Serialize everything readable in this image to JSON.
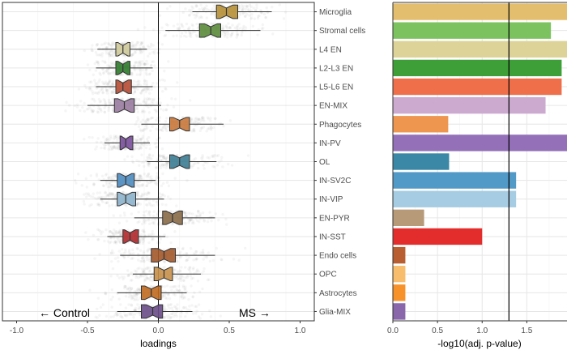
{
  "chart_data": [
    {
      "type": "boxplot",
      "title": "",
      "xlabel": "loadings",
      "ylabel": "",
      "xlim": [
        -1.1,
        1.1
      ],
      "xticks": [
        "-1.0",
        "-0.5",
        "0.0",
        "0.5",
        "1.0"
      ],
      "xtick_values": [
        -1.0,
        -0.5,
        0.0,
        0.5,
        1.0
      ],
      "reference_line_x": 0,
      "annotations": {
        "left": "← Control",
        "right": "MS →"
      },
      "categories": [
        "Microglia",
        "Stromal cells",
        "L4 EN",
        "L2-L3 EN",
        "L5-L6 EN",
        "EN-MIX",
        "Phagocytes",
        "IN-PV",
        "OL",
        "IN-SV2C",
        "IN-VIP",
        "EN-PYR",
        "IN-SST",
        "Endo cells",
        "OPC",
        "Astrocytes",
        "Glia-MIX"
      ],
      "boxes": [
        {
          "name": "Microglia",
          "whisker_low": 0.24,
          "q1": 0.41,
          "median": 0.48,
          "q3": 0.56,
          "whisker_high": 0.8
        },
        {
          "name": "Stromal cells",
          "whisker_low": 0.05,
          "q1": 0.29,
          "median": 0.37,
          "q3": 0.44,
          "whisker_high": 0.72
        },
        {
          "name": "L4 EN",
          "whisker_low": -0.43,
          "q1": -0.3,
          "median": -0.25,
          "q3": -0.2,
          "whisker_high": -0.08
        },
        {
          "name": "L2-L3 EN",
          "whisker_low": -0.44,
          "q1": -0.3,
          "median": -0.25,
          "q3": -0.2,
          "whisker_high": -0.04
        },
        {
          "name": "L5-L6 EN",
          "whisker_low": -0.44,
          "q1": -0.3,
          "median": -0.25,
          "q3": -0.19,
          "whisker_high": -0.04
        },
        {
          "name": "EN-MIX",
          "whisker_low": -0.5,
          "q1": -0.31,
          "median": -0.24,
          "q3": -0.17,
          "whisker_high": 0.02
        },
        {
          "name": "Phagocytes",
          "whisker_low": -0.12,
          "q1": 0.08,
          "median": 0.15,
          "q3": 0.22,
          "whisker_high": 0.46
        },
        {
          "name": "IN-PV",
          "whisker_low": -0.38,
          "q1": -0.27,
          "median": -0.23,
          "q3": -0.18,
          "whisker_high": -0.06
        },
        {
          "name": "OL",
          "whisker_low": -0.08,
          "q1": 0.08,
          "median": 0.15,
          "q3": 0.22,
          "whisker_high": 0.41
        },
        {
          "name": "IN-SV2C",
          "whisker_low": -0.41,
          "q1": -0.29,
          "median": -0.23,
          "q3": -0.17,
          "whisker_high": -0.02
        },
        {
          "name": "IN-VIP",
          "whisker_low": -0.41,
          "q1": -0.29,
          "median": -0.23,
          "q3": -0.16,
          "whisker_high": 0.04
        },
        {
          "name": "EN-PYR",
          "whisker_low": -0.17,
          "q1": 0.03,
          "median": 0.1,
          "q3": 0.17,
          "whisker_high": 0.4
        },
        {
          "name": "IN-SST",
          "whisker_low": -0.36,
          "q1": -0.25,
          "median": -0.2,
          "q3": -0.14,
          "whisker_high": 0.05
        },
        {
          "name": "Endo cells",
          "whisker_low": -0.27,
          "q1": -0.05,
          "median": 0.04,
          "q3": 0.12,
          "whisker_high": 0.4
        },
        {
          "name": "OPC",
          "whisker_low": -0.18,
          "q1": -0.03,
          "median": 0.04,
          "q3": 0.1,
          "whisker_high": 0.3
        },
        {
          "name": "Astrocytes",
          "whisker_low": -0.29,
          "q1": -0.12,
          "median": -0.05,
          "q3": 0.02,
          "whisker_high": 0.2
        },
        {
          "name": "Glia-MIX",
          "whisker_low": -0.29,
          "q1": -0.12,
          "median": -0.04,
          "q3": 0.03,
          "whisker_high": 0.24
        }
      ],
      "colors": [
        "#B58F35",
        "#5A8C3A",
        "#CFC99A",
        "#2E7A2A",
        "#B74B33",
        "#9A7BA0",
        "#C8773A",
        "#7A4E9A",
        "#3B7C94",
        "#4C8BC0",
        "#8DB3CC",
        "#8A6B48",
        "#B0282C",
        "#A3582A",
        "#C8904A",
        "#C06A1E",
        "#6A4C88"
      ]
    },
    {
      "type": "bar",
      "orientation": "horizontal",
      "title": "",
      "xlabel": "-log10(adj. p-value)",
      "ylabel": "",
      "xlim": [
        0,
        1.95
      ],
      "xticks": [
        "0.0",
        "0.5",
        "1.0",
        "1.5"
      ],
      "xtick_values": [
        0.0,
        0.5,
        1.0,
        1.5
      ],
      "threshold_line_x": 1.3,
      "categories": [
        "Microglia",
        "Stromal cells",
        "L4 EN",
        "L2-L3 EN",
        "L5-L6 EN",
        "EN-MIX",
        "Phagocytes",
        "IN-PV",
        "OL",
        "IN-SV2C",
        "IN-VIP",
        "EN-PYR",
        "IN-SST",
        "Endo cells",
        "OPC",
        "Astrocytes",
        "Glia-MIX"
      ],
      "values": [
        1.95,
        1.77,
        1.95,
        1.89,
        1.89,
        1.71,
        0.62,
        1.95,
        0.63,
        1.38,
        1.38,
        0.35,
        1.0,
        0.14,
        0.14,
        0.14,
        0.14
      ],
      "colors": [
        "#E2BE6E",
        "#7CC35F",
        "#DDD398",
        "#3E9F38",
        "#EF6F4B",
        "#CCAACF",
        "#EE9550",
        "#9370B8",
        "#3A87A6",
        "#5199C7",
        "#A6CCE3",
        "#B79A78",
        "#E32D2C",
        "#B85E30",
        "#F8BE6E",
        "#F7922A",
        "#8A66AA"
      ]
    }
  ]
}
